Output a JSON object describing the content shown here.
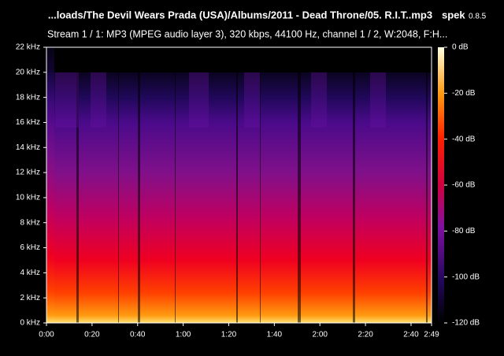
{
  "header": {
    "title": "...loads/The Devil Wears Prada (USA)/Albums/2011 - Dead Throne/05. R.I.T..mp3",
    "app": "spek",
    "version": "0.8.5",
    "subtitle": "Stream 1 / 1: MP3 (MPEG audio layer 3), 320 kbps, 44100 Hz, channel 1 / 2, W:2048, F:H..."
  },
  "frequency_axis": {
    "ticks": [
      "0 kHz",
      "2 kHz",
      "4 kHz",
      "6 kHz",
      "8 kHz",
      "10 kHz",
      "12 kHz",
      "14 kHz",
      "16 kHz",
      "18 kHz",
      "20 kHz",
      "22 kHz"
    ]
  },
  "time_axis": {
    "ticks": [
      "0:00",
      "0:20",
      "0:40",
      "1:00",
      "1:20",
      "1:40",
      "2:00",
      "2:20",
      "2:40",
      "2:49"
    ]
  },
  "level_scale": {
    "ticks": [
      "0 dB",
      "-20 dB",
      "-40 dB",
      "-60 dB",
      "-80 dB",
      "-100 dB",
      "-120 dB"
    ]
  }
}
